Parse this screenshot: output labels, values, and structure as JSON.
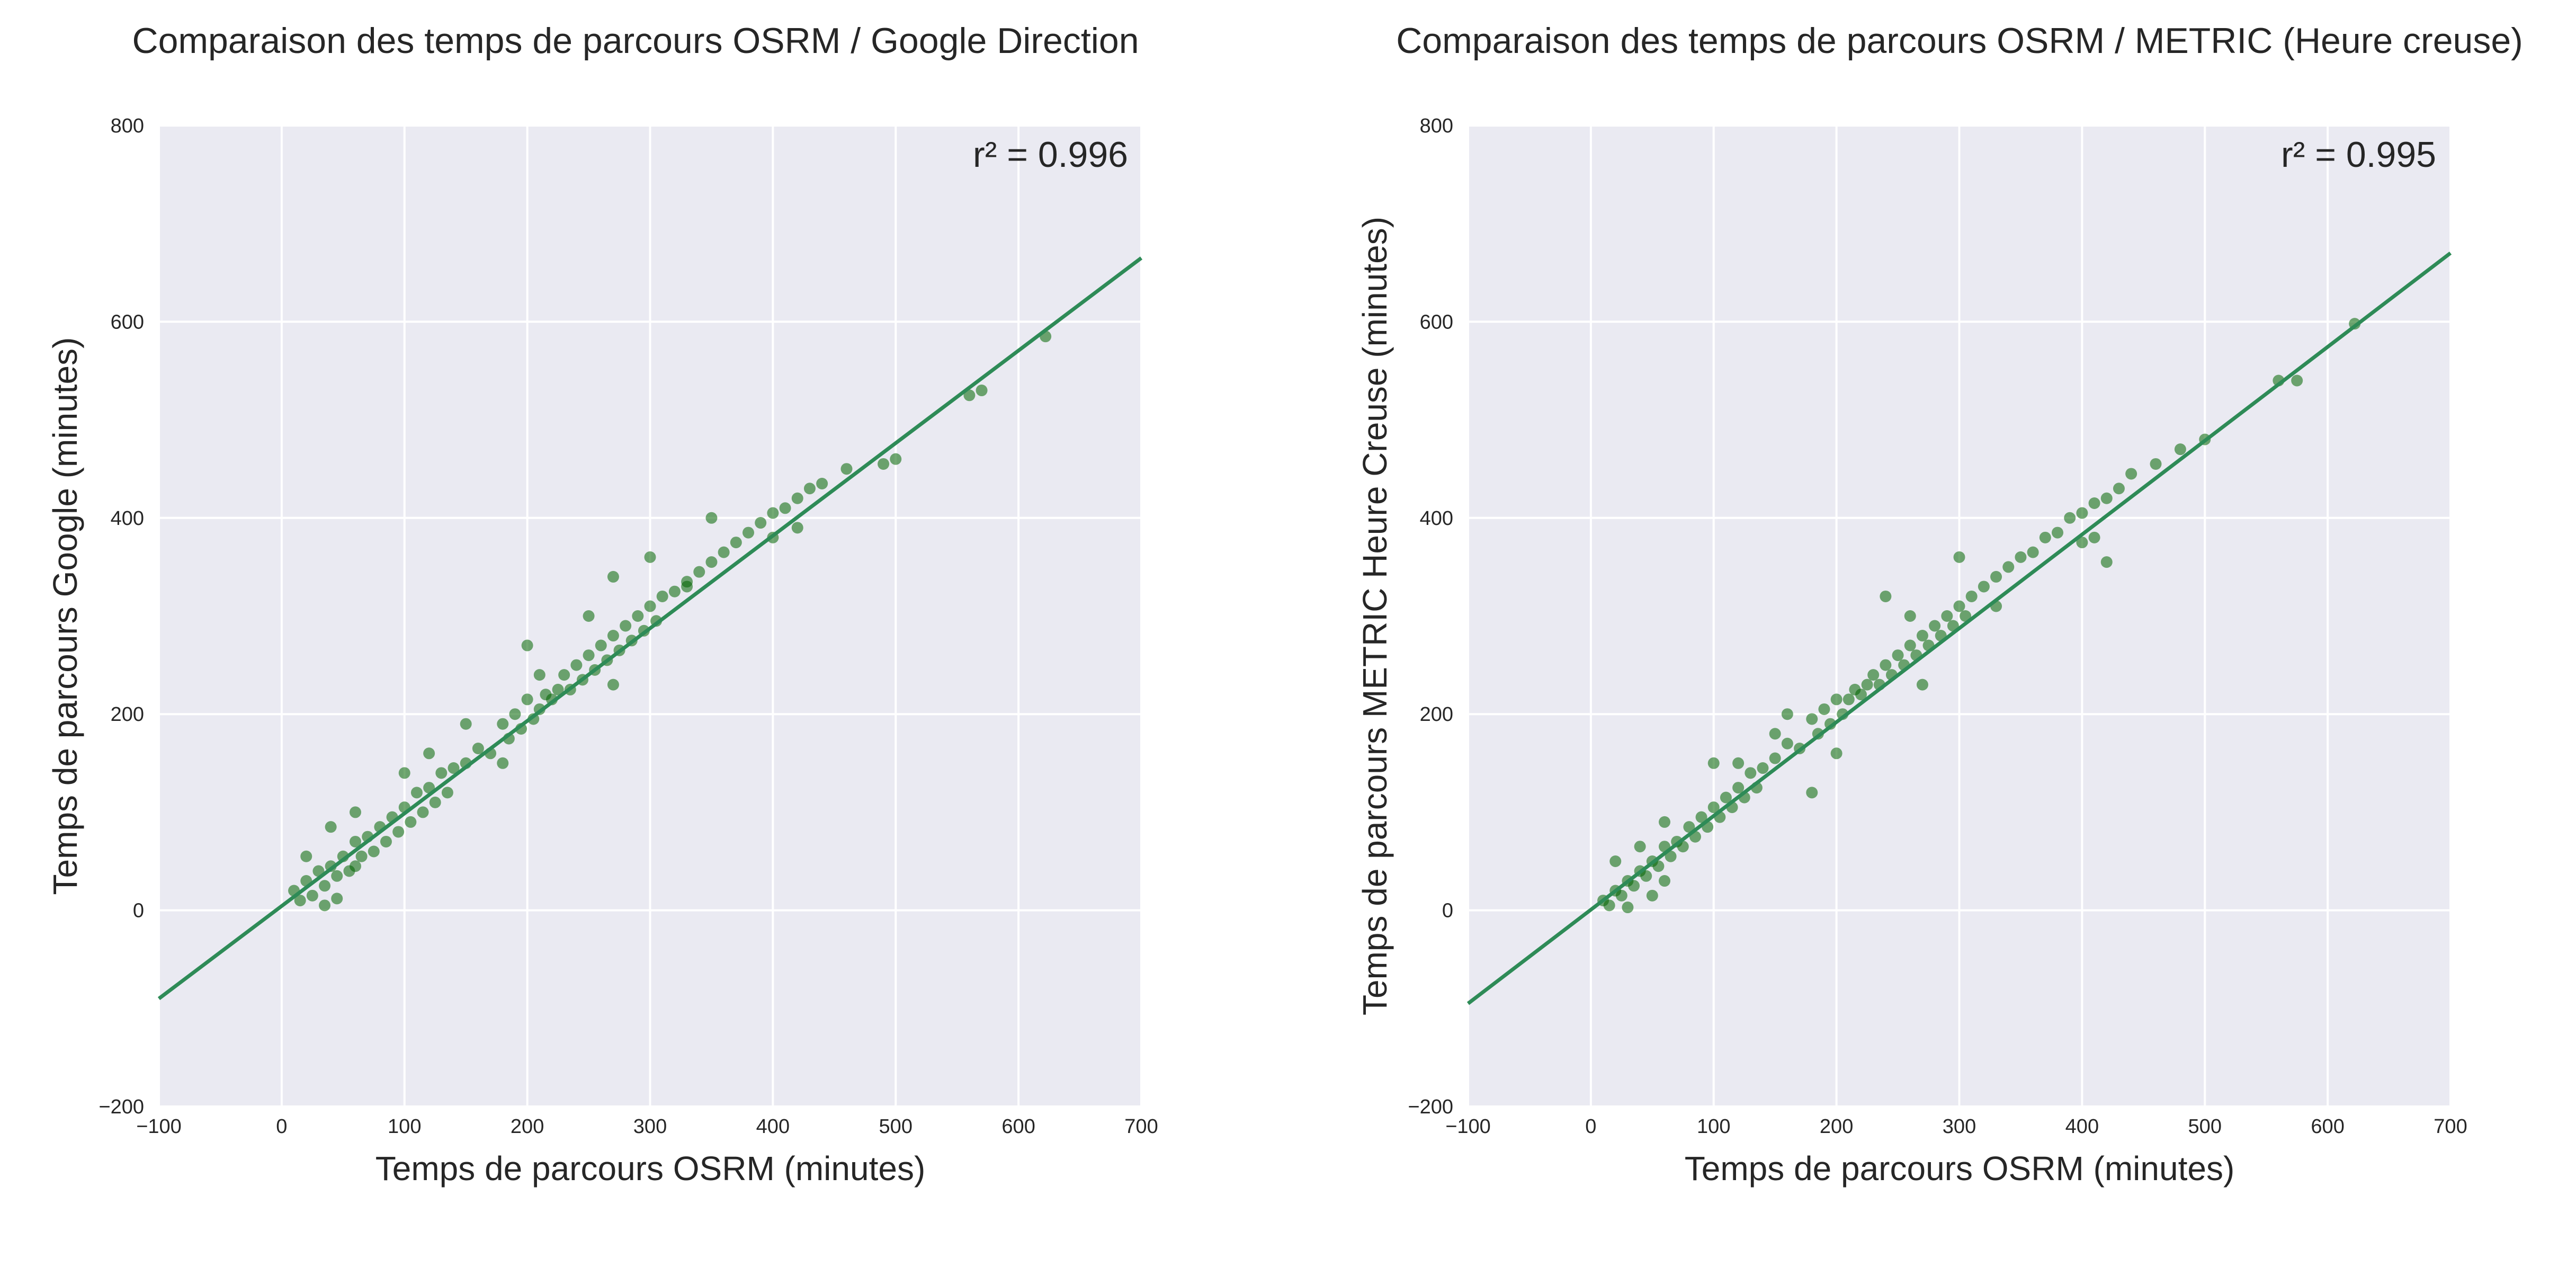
{
  "chart_data": [
    {
      "type": "scatter",
      "title": "Comparaison des temps de parcours OSRM / Google Direction",
      "xlabel": "Temps de parcours OSRM (minutes)",
      "ylabel": "Temps de parcours Google (minutes)",
      "xlim": [
        -100,
        700
      ],
      "ylim": [
        -200,
        800
      ],
      "xticks": [
        -100,
        0,
        100,
        200,
        300,
        400,
        500,
        600,
        700
      ],
      "yticks": [
        -200,
        0,
        200,
        400,
        600,
        800
      ],
      "xtick_labels": [
        "−100",
        "0",
        "100",
        "200",
        "300",
        "400",
        "500",
        "600",
        "700"
      ],
      "ytick_labels": [
        "−200",
        "0",
        "200",
        "400",
        "600",
        "800"
      ],
      "grid": true,
      "annotation": "r² = 0.996",
      "fit_line": {
        "x": [
          -100,
          700
        ],
        "y": [
          -90,
          665
        ]
      },
      "point_color": "#006400",
      "line_color": "#2e8b57",
      "background": "#eaeaf2",
      "points": [
        [
          10,
          20
        ],
        [
          15,
          10
        ],
        [
          20,
          30
        ],
        [
          25,
          15
        ],
        [
          30,
          40
        ],
        [
          35,
          25
        ],
        [
          40,
          45
        ],
        [
          45,
          35
        ],
        [
          50,
          55
        ],
        [
          55,
          40
        ],
        [
          60,
          70
        ],
        [
          65,
          55
        ],
        [
          70,
          75
        ],
        [
          75,
          60
        ],
        [
          80,
          85
        ],
        [
          85,
          70
        ],
        [
          90,
          95
        ],
        [
          95,
          80
        ],
        [
          100,
          105
        ],
        [
          105,
          90
        ],
        [
          110,
          120
        ],
        [
          115,
          100
        ],
        [
          120,
          125
        ],
        [
          125,
          110
        ],
        [
          130,
          140
        ],
        [
          135,
          120
        ],
        [
          140,
          145
        ],
        [
          150,
          150
        ],
        [
          160,
          165
        ],
        [
          170,
          160
        ],
        [
          180,
          190
        ],
        [
          185,
          175
        ],
        [
          190,
          200
        ],
        [
          195,
          185
        ],
        [
          200,
          215
        ],
        [
          205,
          195
        ],
        [
          210,
          205
        ],
        [
          215,
          220
        ],
        [
          220,
          215
        ],
        [
          225,
          225
        ],
        [
          230,
          240
        ],
        [
          235,
          225
        ],
        [
          240,
          250
        ],
        [
          245,
          235
        ],
        [
          250,
          260
        ],
        [
          255,
          245
        ],
        [
          260,
          270
        ],
        [
          265,
          255
        ],
        [
          270,
          280
        ],
        [
          275,
          265
        ],
        [
          280,
          290
        ],
        [
          285,
          275
        ],
        [
          290,
          300
        ],
        [
          295,
          285
        ],
        [
          300,
          310
        ],
        [
          305,
          295
        ],
        [
          310,
          320
        ],
        [
          320,
          325
        ],
        [
          330,
          335
        ],
        [
          340,
          345
        ],
        [
          350,
          355
        ],
        [
          360,
          365
        ],
        [
          370,
          375
        ],
        [
          380,
          385
        ],
        [
          390,
          395
        ],
        [
          400,
          405
        ],
        [
          410,
          410
        ],
        [
          420,
          420
        ],
        [
          430,
          430
        ],
        [
          440,
          435
        ],
        [
          460,
          450
        ],
        [
          490,
          455
        ],
        [
          500,
          460
        ],
        [
          560,
          525
        ],
        [
          570,
          530
        ],
        [
          622,
          585
        ],
        [
          20,
          55
        ],
        [
          40,
          85
        ],
        [
          60,
          45
        ],
        [
          100,
          140
        ],
        [
          150,
          190
        ],
        [
          200,
          270
        ],
        [
          250,
          300
        ],
        [
          300,
          360
        ],
        [
          350,
          400
        ],
        [
          180,
          150
        ],
        [
          270,
          230
        ],
        [
          330,
          330
        ],
        [
          400,
          380
        ],
        [
          420,
          390
        ],
        [
          270,
          340
        ],
        [
          210,
          240
        ],
        [
          120,
          160
        ],
        [
          60,
          100
        ],
        [
          35,
          5
        ],
        [
          45,
          12
        ]
      ]
    },
    {
      "type": "scatter",
      "title": "Comparaison des temps de parcours OSRM / METRIC (Heure creuse)",
      "xlabel": "Temps de parcours OSRM (minutes)",
      "ylabel": "Temps de parcours METRIC Heure Creuse (minutes)",
      "xlim": [
        -100,
        700
      ],
      "ylim": [
        -200,
        800
      ],
      "xticks": [
        -100,
        0,
        100,
        200,
        300,
        400,
        500,
        600,
        700
      ],
      "yticks": [
        -200,
        0,
        200,
        400,
        600,
        800
      ],
      "xtick_labels": [
        "−100",
        "0",
        "100",
        "200",
        "300",
        "400",
        "500",
        "600",
        "700"
      ],
      "ytick_labels": [
        "−200",
        "0",
        "200",
        "400",
        "600",
        "800"
      ],
      "grid": true,
      "annotation": "r² = 0.995",
      "fit_line": {
        "x": [
          -100,
          700
        ],
        "y": [
          -95,
          670
        ]
      },
      "point_color": "#006400",
      "line_color": "#2e8b57",
      "background": "#eaeaf2",
      "points": [
        [
          10,
          10
        ],
        [
          15,
          5
        ],
        [
          20,
          20
        ],
        [
          25,
          15
        ],
        [
          30,
          30
        ],
        [
          35,
          25
        ],
        [
          40,
          40
        ],
        [
          45,
          35
        ],
        [
          50,
          50
        ],
        [
          55,
          45
        ],
        [
          60,
          65
        ],
        [
          65,
          55
        ],
        [
          70,
          70
        ],
        [
          75,
          65
        ],
        [
          80,
          85
        ],
        [
          85,
          75
        ],
        [
          90,
          95
        ],
        [
          95,
          85
        ],
        [
          100,
          105
        ],
        [
          105,
          95
        ],
        [
          110,
          115
        ],
        [
          115,
          105
        ],
        [
          120,
          125
        ],
        [
          125,
          115
        ],
        [
          130,
          140
        ],
        [
          135,
          125
        ],
        [
          140,
          145
        ],
        [
          150,
          155
        ],
        [
          160,
          170
        ],
        [
          170,
          165
        ],
        [
          180,
          195
        ],
        [
          185,
          180
        ],
        [
          190,
          205
        ],
        [
          195,
          190
        ],
        [
          200,
          215
        ],
        [
          205,
          200
        ],
        [
          210,
          215
        ],
        [
          215,
          225
        ],
        [
          220,
          220
        ],
        [
          225,
          230
        ],
        [
          230,
          240
        ],
        [
          235,
          230
        ],
        [
          240,
          250
        ],
        [
          245,
          240
        ],
        [
          250,
          260
        ],
        [
          255,
          250
        ],
        [
          260,
          270
        ],
        [
          265,
          260
        ],
        [
          270,
          280
        ],
        [
          275,
          270
        ],
        [
          280,
          290
        ],
        [
          285,
          280
        ],
        [
          290,
          300
        ],
        [
          295,
          290
        ],
        [
          300,
          310
        ],
        [
          305,
          300
        ],
        [
          310,
          320
        ],
        [
          320,
          330
        ],
        [
          330,
          340
        ],
        [
          340,
          350
        ],
        [
          350,
          360
        ],
        [
          360,
          365
        ],
        [
          370,
          380
        ],
        [
          380,
          385
        ],
        [
          390,
          400
        ],
        [
          400,
          405
        ],
        [
          410,
          415
        ],
        [
          420,
          420
        ],
        [
          430,
          430
        ],
        [
          440,
          445
        ],
        [
          460,
          455
        ],
        [
          480,
          470
        ],
        [
          500,
          480
        ],
        [
          560,
          540
        ],
        [
          575,
          540
        ],
        [
          622,
          598
        ],
        [
          20,
          50
        ],
        [
          40,
          65
        ],
        [
          60,
          30
        ],
        [
          100,
          150
        ],
        [
          150,
          180
        ],
        [
          200,
          160
        ],
        [
          240,
          320
        ],
        [
          260,
          300
        ],
        [
          300,
          360
        ],
        [
          180,
          120
        ],
        [
          270,
          230
        ],
        [
          330,
          310
        ],
        [
          400,
          375
        ],
        [
          420,
          355
        ],
        [
          410,
          380
        ],
        [
          160,
          200
        ],
        [
          120,
          150
        ],
        [
          60,
          90
        ],
        [
          30,
          3
        ],
        [
          50,
          15
        ]
      ]
    }
  ]
}
